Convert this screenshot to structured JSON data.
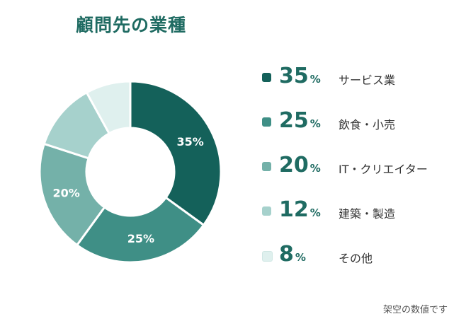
{
  "chart_data": {
    "type": "pie",
    "title": "顧問先の業種",
    "unit": "%",
    "categories": [
      "サービス業",
      "飲食・小売",
      "IT・クリエイター",
      "建築・製造",
      "その他"
    ],
    "values": [
      35,
      25,
      20,
      12,
      8
    ],
    "labels": [
      "35%",
      "25%",
      "20%",
      "12%",
      "8%"
    ],
    "colors": [
      "#14615a",
      "#3f8f86",
      "#74b1a9",
      "#a6d1cc",
      "#dff0ee"
    ],
    "slice_label_colors": [
      "#ffffff",
      "#ffffff",
      "#ffffff",
      "#ffffff",
      "#ffffff"
    ],
    "legend_placement": "right",
    "footnote": "架空の数値です"
  }
}
